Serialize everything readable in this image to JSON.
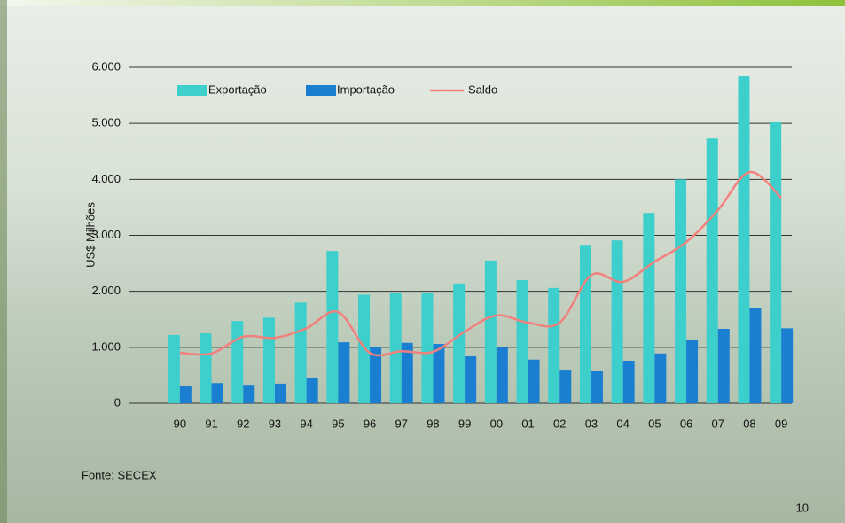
{
  "chart_data": {
    "type": "bar",
    "y_label": "US$ Milhões",
    "source": "Fonte: SECEX",
    "page_number": "10",
    "categories": [
      "90",
      "91",
      "92",
      "93",
      "94",
      "95",
      "96",
      "97",
      "98",
      "99",
      "00",
      "01",
      "02",
      "03",
      "04",
      "05",
      "06",
      "07",
      "08",
      "09"
    ],
    "series": [
      {
        "name": "Exportação",
        "type": "bar",
        "color": "#3dcfcc",
        "values": [
          1220,
          1250,
          1470,
          1530,
          1800,
          2720,
          1940,
          1980,
          1980,
          2140,
          2550,
          2200,
          2060,
          2830,
          2910,
          3400,
          4000,
          4730,
          5840,
          5020
        ]
      },
      {
        "name": "Importação",
        "type": "bar",
        "color": "#1a7fd0",
        "values": [
          300,
          360,
          330,
          350,
          460,
          1090,
          1010,
          1080,
          1060,
          840,
          1000,
          780,
          600,
          570,
          760,
          890,
          1140,
          1330,
          1710,
          1340
        ]
      },
      {
        "name": "Saldo",
        "type": "line",
        "color": "#f2807c",
        "values": [
          900,
          890,
          1190,
          1170,
          1340,
          1630,
          900,
          930,
          920,
          1280,
          1570,
          1440,
          1440,
          2290,
          2170,
          2530,
          2880,
          3450,
          4130,
          3670
        ]
      }
    ],
    "ylim": [
      0,
      6000
    ],
    "yticks": [
      0,
      {
        "value": 1000,
        "label": "1.000"
      },
      {
        "value": 2000,
        "label": "2.000"
      },
      {
        "value": 3000,
        "label": "3.000"
      },
      {
        "value": 4000,
        "label": "4.000"
      },
      {
        "value": 5000,
        "label": "5.000"
      },
      {
        "value": 6000,
        "label": "6.000"
      }
    ],
    "grid": true,
    "legend": "top"
  }
}
